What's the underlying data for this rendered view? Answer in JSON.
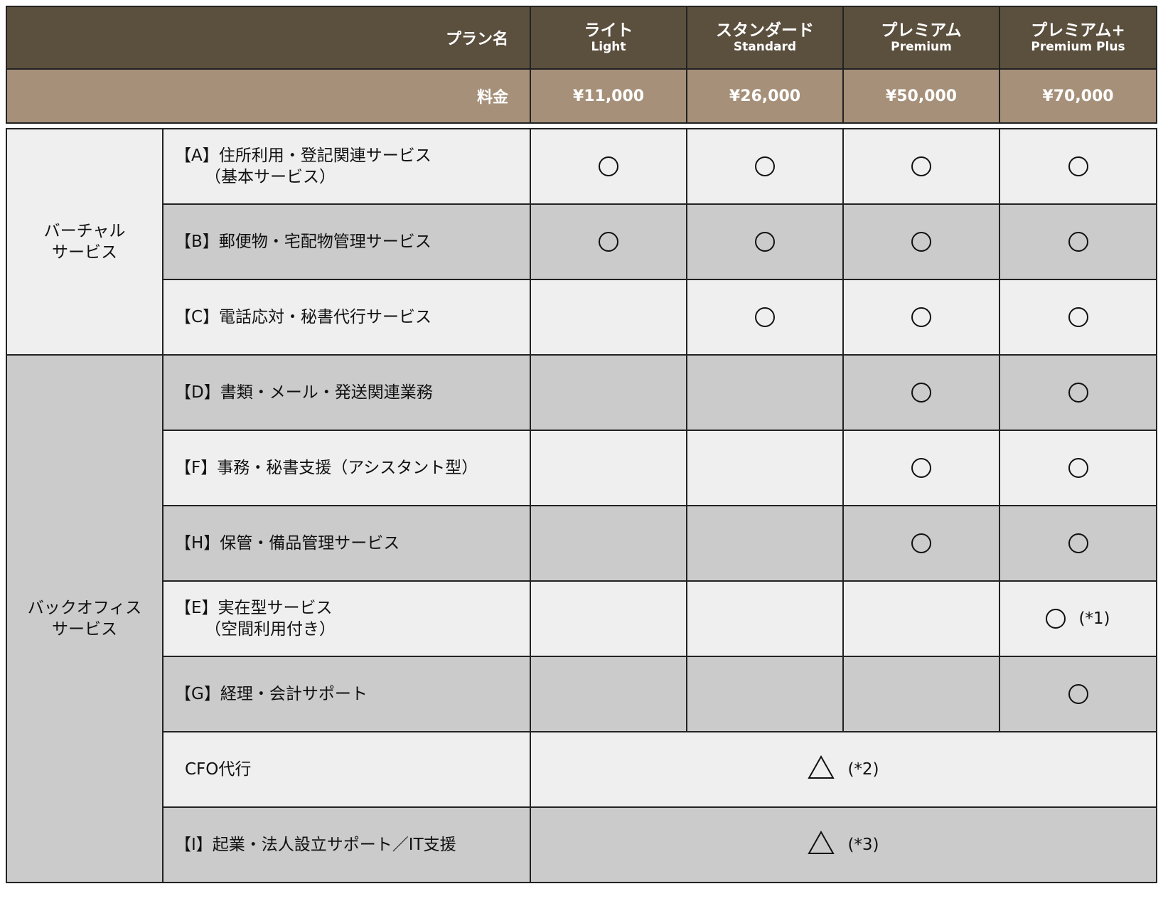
{
  "header": {
    "plan_label": "プラン名",
    "fee_label": "料金",
    "plans": [
      {
        "name_ja": "ライト",
        "name_en": "Light",
        "price": "¥11,000"
      },
      {
        "name_ja": "スタンダード",
        "name_en": "Standard",
        "price": "¥26,000"
      },
      {
        "name_ja": "プレミアム",
        "name_en": "Premium",
        "price": "¥50,000"
      },
      {
        "name_ja": "プレミアム+",
        "name_en": "Premium Plus",
        "price": "¥70,000"
      }
    ]
  },
  "colors": {
    "header_dark": "#5b4f3e",
    "header_fee": "#a69079",
    "row_light": "#efefef",
    "row_dark": "#cbcbcb"
  },
  "categories": [
    {
      "label_line1": "バーチャル",
      "label_line2": "サービス"
    },
    {
      "label_line1": "バックオフィス",
      "label_line2": "サービス"
    }
  ],
  "rows": [
    {
      "service": "【A】住所利用・登記関連サービス",
      "sub": "（基本サービス）",
      "marks": [
        "circle",
        "circle",
        "circle",
        "circle"
      ]
    },
    {
      "service": "【B】郵便物・宅配物管理サービス",
      "marks": [
        "circle",
        "circle",
        "circle",
        "circle"
      ]
    },
    {
      "service": "【C】電話応対・秘書代行サービス",
      "marks": [
        "",
        "circle",
        "circle",
        "circle"
      ]
    },
    {
      "service": "【D】書類・メール・発送関連業務",
      "marks": [
        "",
        "",
        "circle",
        "circle"
      ]
    },
    {
      "service": "【F】事務・秘書支援（アシスタント型）",
      "marks": [
        "",
        "",
        "circle",
        "circle"
      ]
    },
    {
      "service": "【H】保管・備品管理サービス",
      "marks": [
        "",
        "",
        "circle",
        "circle"
      ]
    },
    {
      "service": "【E】実在型サービス",
      "sub": "（空間利用付き）",
      "marks": [
        "",
        "",
        "",
        "circle"
      ],
      "note": "(*1)"
    },
    {
      "service": "【G】経理・会計サポート",
      "marks": [
        "",
        "",
        "",
        "circle"
      ]
    },
    {
      "service": "CFO代行",
      "mark": "triangle",
      "note": "(*2)"
    },
    {
      "service": "【I】起業・法人設立サポート／IT支援",
      "mark": "triangle",
      "note": "(*3)"
    }
  ]
}
